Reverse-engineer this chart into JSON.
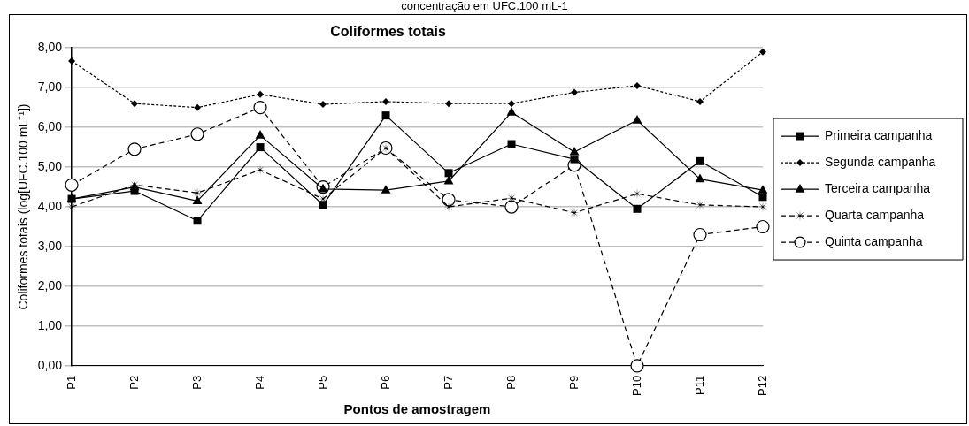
{
  "chart_data": {
    "type": "line",
    "title": "Coliformes totais",
    "xlabel": "Pontos de amostragem",
    "ylabel": "Coliformes totais (log[UFC.100 mL⁻¹])",
    "annotations": [
      "concentração em UFC.100 mL-1"
    ],
    "categories": [
      "P1",
      "P2",
      "P3",
      "P4",
      "P5",
      "P6",
      "P7",
      "P8",
      "P9",
      "P10",
      "P11",
      "P12"
    ],
    "ylim": [
      0,
      8
    ],
    "yticks": [
      {
        "value": 0,
        "label": "0,00"
      },
      {
        "value": 1,
        "label": "1,00"
      },
      {
        "value": 2,
        "label": "2,00"
      },
      {
        "value": 3,
        "label": "3,00"
      },
      {
        "value": 4,
        "label": "4,00"
      },
      {
        "value": 5,
        "label": "5,00"
      },
      {
        "value": 6,
        "label": "6,00"
      },
      {
        "value": 7,
        "label": "7,00"
      },
      {
        "value": 8,
        "label": "8,00"
      }
    ],
    "grid": "y",
    "legend": "right",
    "series": [
      {
        "name": "Primeira campanha",
        "color": "#000000",
        "marker": "square",
        "line_style": "solid",
        "values": [
          4.2,
          4.4,
          3.65,
          5.5,
          4.05,
          6.3,
          4.85,
          5.58,
          5.2,
          3.95,
          5.15,
          4.25
        ]
      },
      {
        "name": "Segunda campanha",
        "color": "#000000",
        "marker": "diamond",
        "line_style": "dotted",
        "values": [
          7.67,
          6.6,
          6.5,
          6.83,
          6.58,
          6.65,
          6.6,
          6.6,
          6.88,
          7.05,
          6.65,
          7.9
        ]
      },
      {
        "name": "Terceira campanha",
        "color": "#000000",
        "marker": "triangle",
        "line_style": "solid",
        "values": [
          4.2,
          4.5,
          4.15,
          5.8,
          4.45,
          4.42,
          4.65,
          6.38,
          5.38,
          6.18,
          4.7,
          4.42
        ]
      },
      {
        "name": "Quarta campanha",
        "color": "#000000",
        "marker": "star",
        "line_style": "dashed",
        "values": [
          4.0,
          4.55,
          4.35,
          4.93,
          4.2,
          5.48,
          4.0,
          4.22,
          3.85,
          4.33,
          4.05,
          4.0
        ]
      },
      {
        "name": "Quinta campanha",
        "color": "#000000",
        "marker": "circle",
        "line_style": "dashed",
        "values": [
          4.55,
          5.45,
          5.83,
          6.5,
          4.5,
          5.48,
          4.18,
          4.0,
          5.05,
          0,
          3.3,
          3.5
        ]
      }
    ]
  }
}
